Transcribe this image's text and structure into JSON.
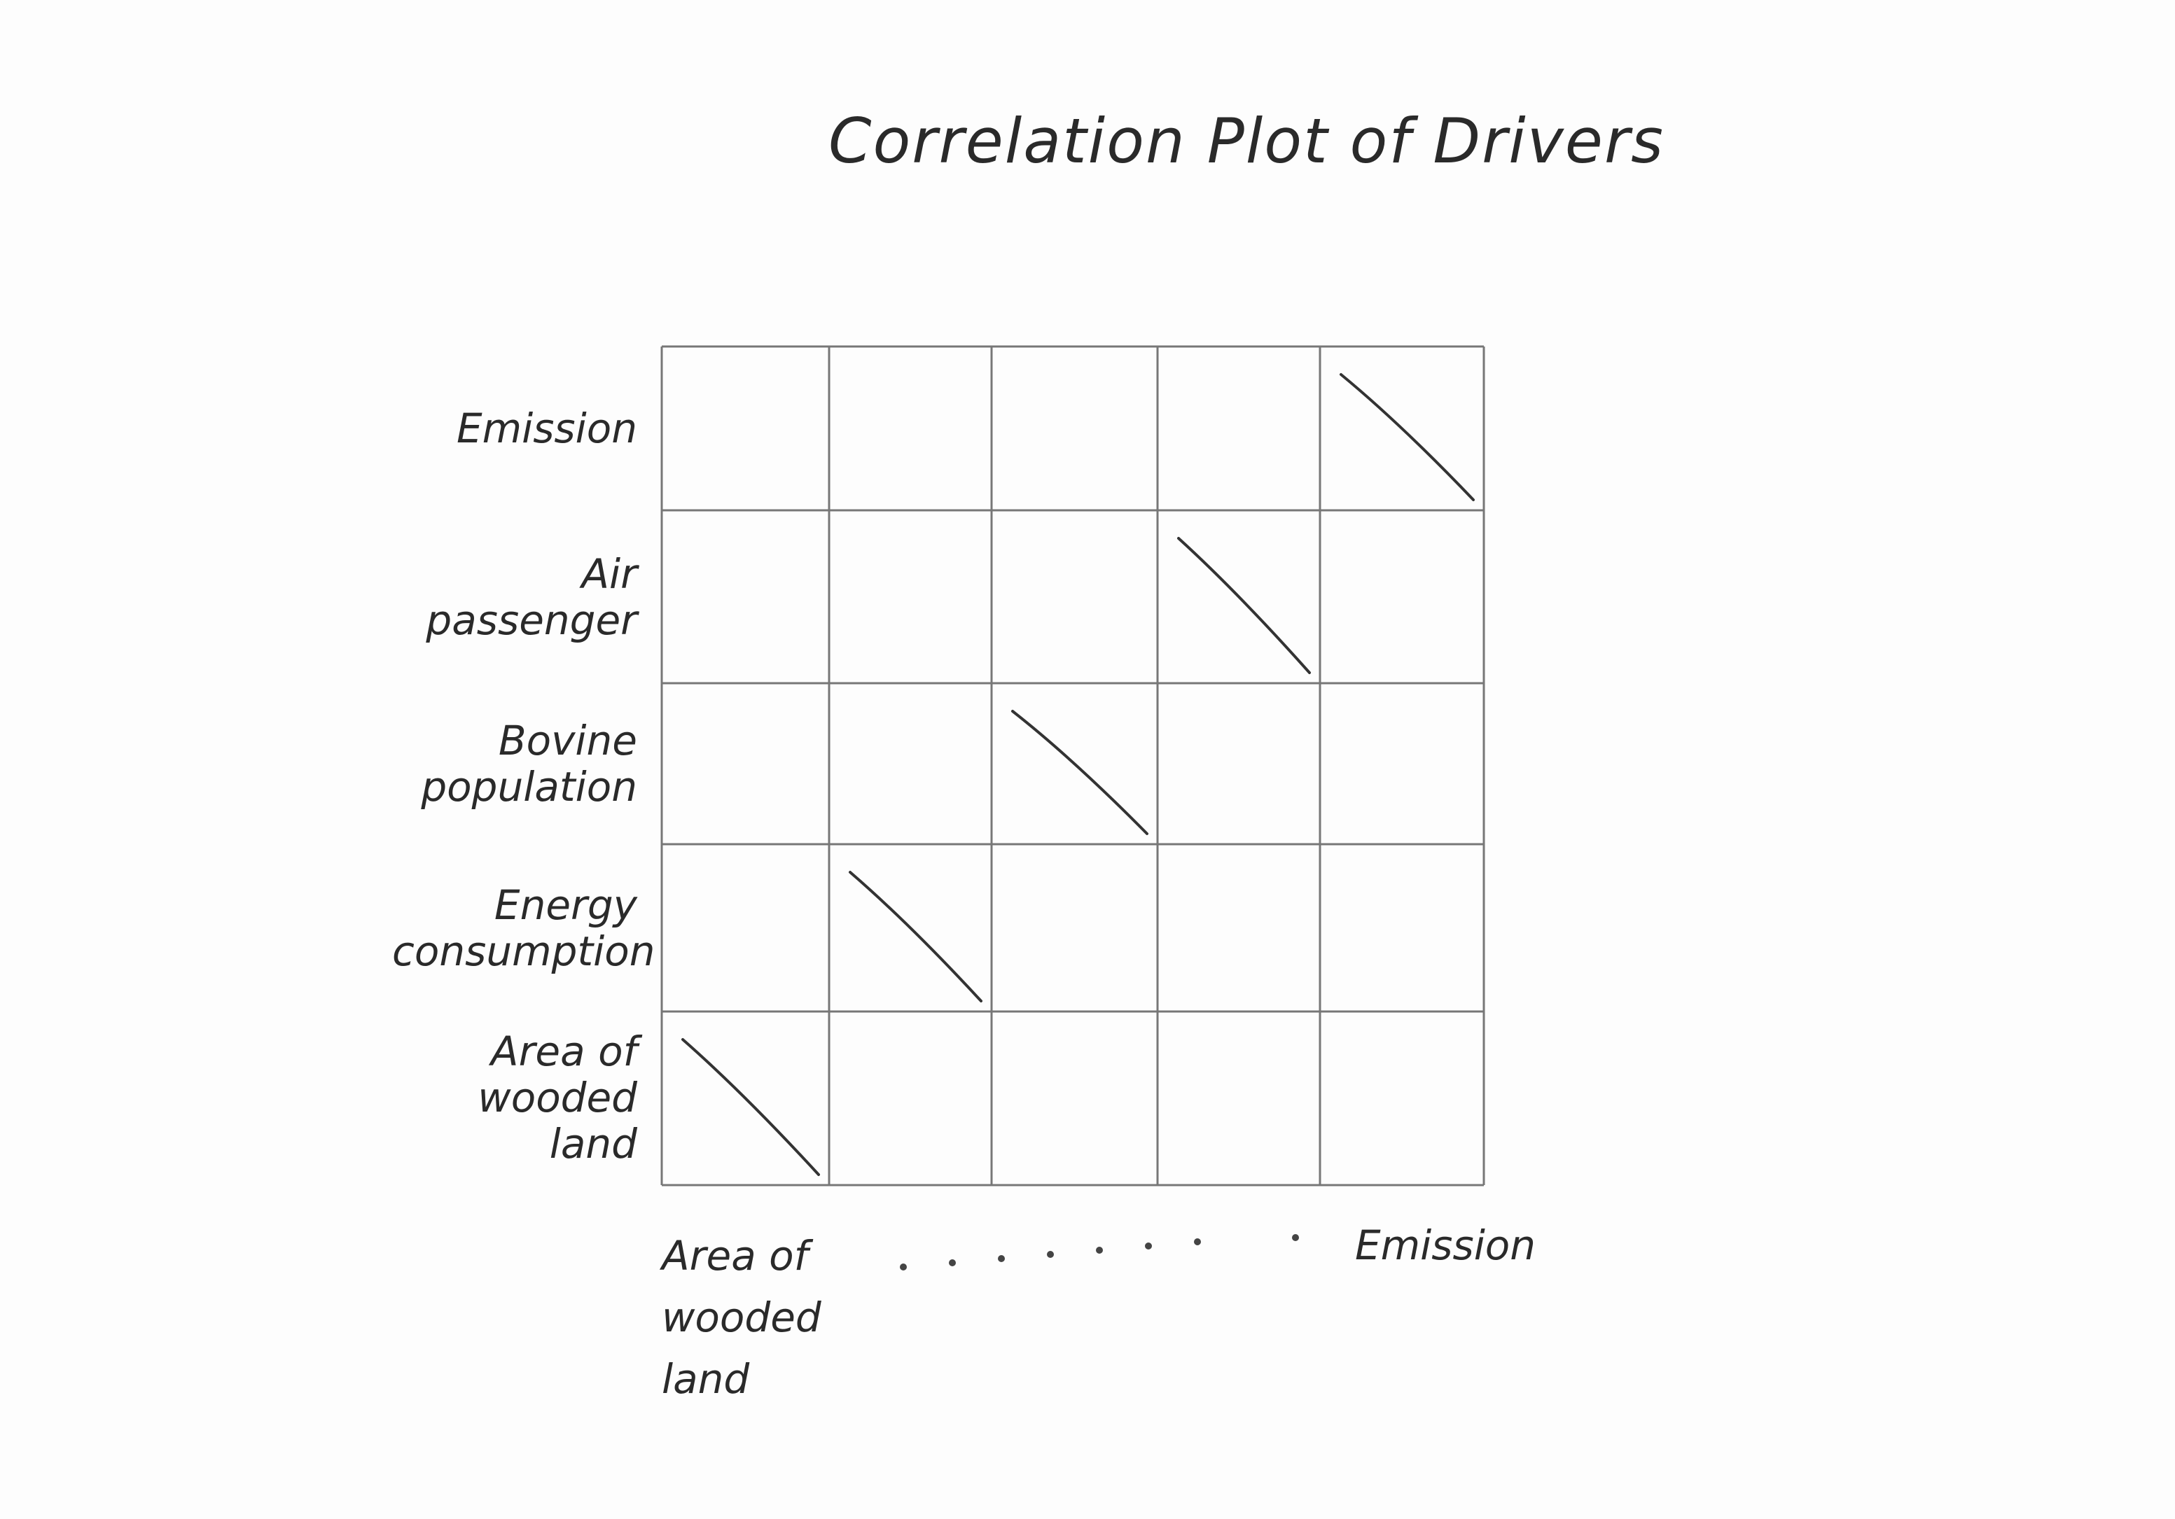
{
  "title": "Correlation Plot of Drivers",
  "rows": [
    "Emission",
    "Air passenger",
    "Bovine population",
    "Energy consumption",
    "Area of wooded land"
  ],
  "columns": [
    "Area of wooded land",
    "Emission"
  ]
}
